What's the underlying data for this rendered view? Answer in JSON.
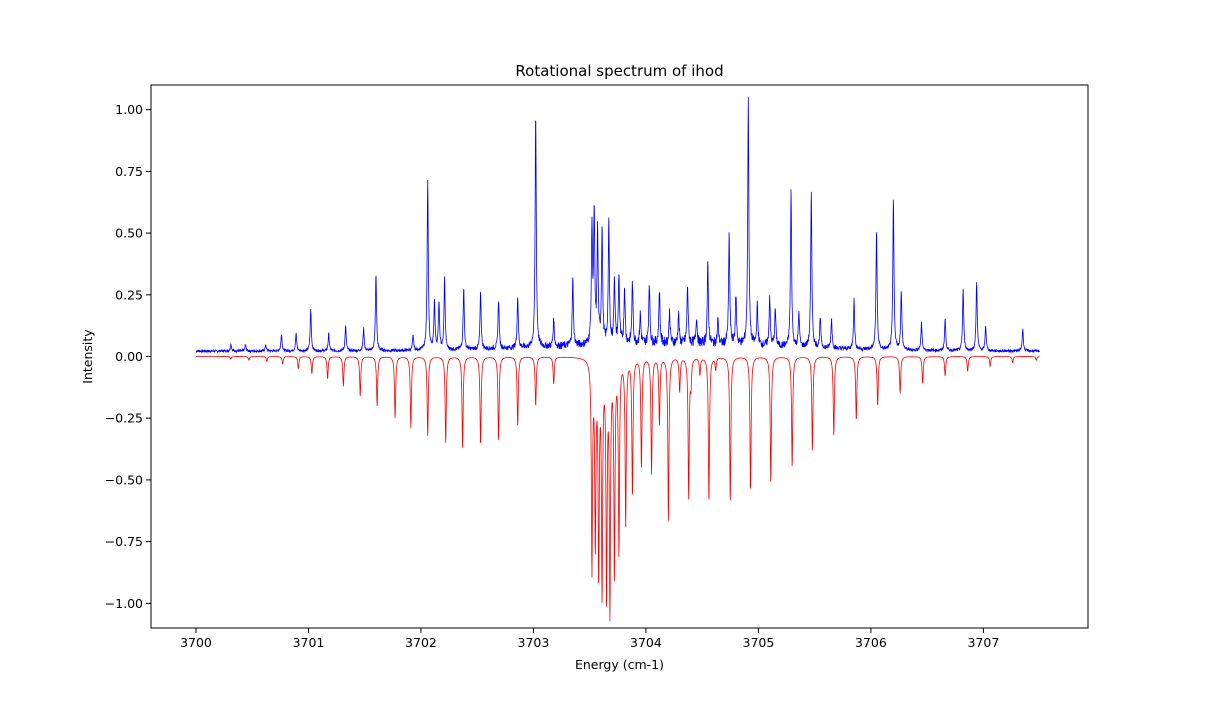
{
  "chart_data": {
    "type": "line",
    "title": "Rotational spectrum of ihod",
    "xlabel": "Energy (cm-1)",
    "ylabel": "Intensity",
    "xlim": [
      3699.6,
      3707.93
    ],
    "ylim": [
      -1.1,
      1.1
    ],
    "grid": false,
    "legend": "none",
    "x_ticks": [
      3700,
      3701,
      3702,
      3703,
      3704,
      3705,
      3706,
      3707
    ],
    "x_tick_labels": [
      "3700",
      "3701",
      "3702",
      "3703",
      "3704",
      "3705",
      "3706",
      "3707"
    ],
    "y_ticks": [
      -1.0,
      -0.75,
      -0.5,
      -0.25,
      0.0,
      0.25,
      0.5,
      0.75,
      1.0
    ],
    "y_tick_labels": [
      "−1.00",
      "−0.75",
      "−0.50",
      "−0.25",
      "0.00",
      "0.25",
      "0.50",
      "0.75",
      "1.00"
    ],
    "x_range": [
      3700.0,
      3707.5
    ],
    "series": [
      {
        "color": "#0000ff",
        "kind": "measured",
        "baseline": 0.02,
        "noise_amplitude": 0.01,
        "peaks": [
          [
            3700.31,
            0.03
          ],
          [
            3700.44,
            0.025
          ],
          [
            3700.62,
            0.025
          ],
          [
            3700.76,
            0.07
          ],
          [
            3700.89,
            0.07
          ],
          [
            3701.02,
            0.17
          ],
          [
            3701.18,
            0.07
          ],
          [
            3701.33,
            0.1
          ],
          [
            3701.49,
            0.09
          ],
          [
            3701.6,
            0.31
          ],
          [
            3701.93,
            0.06
          ],
          [
            3702.06,
            0.69
          ],
          [
            3702.12,
            0.2
          ],
          [
            3702.16,
            0.19
          ],
          [
            3702.21,
            0.29
          ],
          [
            3702.38,
            0.25
          ],
          [
            3702.53,
            0.23
          ],
          [
            3702.69,
            0.2
          ],
          [
            3702.86,
            0.21
          ],
          [
            3703.02,
            0.95
          ],
          [
            3703.18,
            0.11
          ],
          [
            3703.35,
            0.27
          ],
          [
            3703.52,
            0.47
          ],
          [
            3703.54,
            0.52
          ],
          [
            3703.57,
            0.45
          ],
          [
            3703.61,
            0.47
          ],
          [
            3703.67,
            0.49
          ],
          [
            3703.72,
            0.27
          ],
          [
            3703.76,
            0.28
          ],
          [
            3703.81,
            0.23
          ],
          [
            3703.88,
            0.25
          ],
          [
            3703.95,
            0.12
          ],
          [
            3704.03,
            0.25
          ],
          [
            3704.12,
            0.22
          ],
          [
            3704.21,
            0.13
          ],
          [
            3704.29,
            0.12
          ],
          [
            3704.37,
            0.24
          ],
          [
            3704.45,
            0.11
          ],
          [
            3704.55,
            0.32
          ],
          [
            3704.64,
            0.1
          ],
          [
            3704.74,
            0.45
          ],
          [
            3704.8,
            0.2
          ],
          [
            3704.91,
            1.0
          ],
          [
            3704.99,
            0.16
          ],
          [
            3705.1,
            0.2
          ],
          [
            3705.15,
            0.15
          ],
          [
            3705.29,
            0.63
          ],
          [
            3705.36,
            0.14
          ],
          [
            3705.47,
            0.63
          ],
          [
            3705.55,
            0.12
          ],
          [
            3705.65,
            0.12
          ],
          [
            3705.85,
            0.2
          ],
          [
            3706.05,
            0.48
          ],
          [
            3706.2,
            0.61
          ],
          [
            3706.27,
            0.24
          ],
          [
            3706.45,
            0.11
          ],
          [
            3706.66,
            0.13
          ],
          [
            3706.82,
            0.25
          ],
          [
            3706.94,
            0.28
          ],
          [
            3707.02,
            0.1
          ],
          [
            3707.35,
            0.09
          ]
        ]
      },
      {
        "color": "#ff0000",
        "kind": "simulated",
        "baseline": 0.0,
        "peaks": [
          [
            3700.31,
            -0.01
          ],
          [
            3700.47,
            -0.015
          ],
          [
            3700.63,
            -0.02
          ],
          [
            3700.77,
            -0.03
          ],
          [
            3700.91,
            -0.05
          ],
          [
            3701.03,
            -0.07
          ],
          [
            3701.17,
            -0.09
          ],
          [
            3701.31,
            -0.12
          ],
          [
            3701.46,
            -0.16
          ],
          [
            3701.61,
            -0.2
          ],
          [
            3701.77,
            -0.25
          ],
          [
            3701.91,
            -0.29
          ],
          [
            3702.06,
            -0.32
          ],
          [
            3702.22,
            -0.35
          ],
          [
            3702.37,
            -0.37
          ],
          [
            3702.53,
            -0.36
          ],
          [
            3702.69,
            -0.34
          ],
          [
            3702.86,
            -0.28
          ],
          [
            3703.02,
            -0.2
          ],
          [
            3703.18,
            -0.11
          ],
          [
            3703.52,
            -0.85
          ],
          [
            3703.55,
            -0.73
          ],
          [
            3703.58,
            -0.86
          ],
          [
            3703.61,
            -0.93
          ],
          [
            3703.65,
            -0.95
          ],
          [
            3703.68,
            -1.0
          ],
          [
            3703.72,
            -0.86
          ],
          [
            3703.76,
            -0.78
          ],
          [
            3703.82,
            -0.67
          ],
          [
            3703.88,
            -0.56
          ],
          [
            3703.96,
            -0.45
          ],
          [
            3704.05,
            -0.47
          ],
          [
            3704.12,
            -0.27
          ],
          [
            3704.2,
            -0.66
          ],
          [
            3704.3,
            -0.14
          ],
          [
            3704.38,
            -0.57
          ],
          [
            3704.4,
            -0.1
          ],
          [
            3704.48,
            -0.07
          ],
          [
            3704.56,
            -0.59
          ],
          [
            3704.62,
            -0.05
          ],
          [
            3704.75,
            -0.59
          ],
          [
            3704.93,
            -0.55
          ],
          [
            3705.11,
            -0.51
          ],
          [
            3705.3,
            -0.45
          ],
          [
            3705.48,
            -0.38
          ],
          [
            3705.67,
            -0.32
          ],
          [
            3705.87,
            -0.26
          ],
          [
            3706.06,
            -0.2
          ],
          [
            3706.26,
            -0.15
          ],
          [
            3706.46,
            -0.11
          ],
          [
            3706.66,
            -0.08
          ],
          [
            3706.86,
            -0.06
          ],
          [
            3707.06,
            -0.04
          ],
          [
            3707.26,
            -0.025
          ],
          [
            3707.47,
            -0.015
          ]
        ]
      }
    ]
  }
}
